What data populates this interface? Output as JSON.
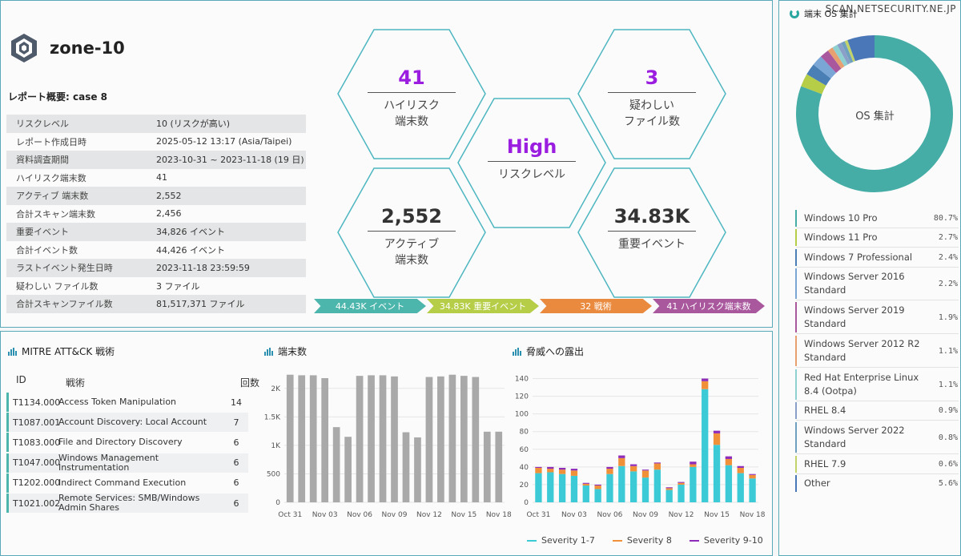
{
  "watermark": "SCAN.NETSECURITY.NE.JP",
  "brand": {
    "name": "zone-10"
  },
  "report": {
    "title": "レポート概要: case 8",
    "rows": [
      {
        "k": "リスクレベル",
        "v": "10 (リスクが高い)"
      },
      {
        "k": "レポート作成日時",
        "v": "2025-05-12 13:17 (Asia/Taipei)"
      },
      {
        "k": "資料調査期間",
        "v": "2023-10-31 ~ 2023-11-18 (19 日)"
      },
      {
        "k": "ハイリスク端末数",
        "v": "41"
      },
      {
        "k": "アクティブ 端末数",
        "v": "2,552"
      },
      {
        "k": "合計スキャン端末数",
        "v": "2,456"
      },
      {
        "k": "重要イベント",
        "v": "34,826 イベント"
      },
      {
        "k": "合計イベント数",
        "v": "44,426 イベント"
      },
      {
        "k": "ラストイベント発生日時",
        "v": "2023-11-18 23:59:59"
      },
      {
        "k": "疑わしい ファイル数",
        "v": "3 ファイル"
      },
      {
        "k": "合計スキャンファイル数",
        "v": "81,517,371 ファイル"
      }
    ]
  },
  "hexes": {
    "high_risk": {
      "value": "41",
      "label1": "ハイリスク",
      "label2": "端末数",
      "color": "#9a1de0"
    },
    "suspicious": {
      "value": "3",
      "label1": "疑わしい",
      "label2": "ファイル数",
      "color": "#9a1de0"
    },
    "risk_level": {
      "value": "High",
      "label1": "リスクレベル",
      "color": "#9a1de0"
    },
    "active": {
      "value": "2,552",
      "label1": "アクティブ",
      "label2": "端末数",
      "color": "#333333"
    },
    "events": {
      "value": "34.83K",
      "label1": "重要イベント",
      "color": "#333333"
    }
  },
  "ribbons": [
    {
      "label": "44.43K イベント",
      "color": "#4db6ac"
    },
    {
      "label": "34.83K 重要イベント",
      "color": "#b5cd47"
    },
    {
      "label": "32 戦術",
      "color": "#ea8a3e"
    },
    {
      "label": "41 ハイリスク端末数",
      "color": "#a9589e"
    }
  ],
  "mitre": {
    "title": "MITRE ATT&CK 戦術",
    "headers": {
      "id": "ID",
      "name": "戦術",
      "count": "回数"
    },
    "rows": [
      {
        "id": "T1134.000",
        "name": "Access Token Manipulation",
        "count": "14"
      },
      {
        "id": "T1087.001",
        "name": "Account Discovery: Local Account",
        "count": "7"
      },
      {
        "id": "T1083.000",
        "name": "File and Directory Discovery",
        "count": "6"
      },
      {
        "id": "T1047.000",
        "name": "Windows Management Instrumentation",
        "count": "6"
      },
      {
        "id": "T1202.000",
        "name": "Indirect Command Execution",
        "count": "6"
      },
      {
        "id": "T1021.002",
        "name": "Remote Services: SMB/Windows Admin Shares",
        "count": "6"
      }
    ]
  },
  "endpoints_chart_title": "端末数",
  "threat_chart_title": "脅威への露出",
  "os_panel": {
    "title": "端末 OS 集計",
    "donut_label": "OS 集計",
    "items": [
      {
        "name": "Windows 10 Pro",
        "pct": "80.7%",
        "color": "#45ada6"
      },
      {
        "name": "Windows 11 Pro",
        "pct": "2.7%",
        "color": "#b5cd47"
      },
      {
        "name": "Windows 7 Professional",
        "pct": "2.4%",
        "color": "#4a7fb5"
      },
      {
        "name": "Windows Server 2016 Standard",
        "pct": "2.2%",
        "color": "#7aa6d6"
      },
      {
        "name": "Windows Server 2019 Standard",
        "pct": "1.9%",
        "color": "#a9589e"
      },
      {
        "name": "Windows Server 2012 R2 Standard",
        "pct": "1.1%",
        "color": "#e8a070"
      },
      {
        "name": "Red Hat Enterprise Linux 8.4 (Ootpa)",
        "pct": "1.1%",
        "color": "#8fd0d0"
      },
      {
        "name": "RHEL 8.4",
        "pct": "0.9%",
        "color": "#8aa0c8"
      },
      {
        "name": "Windows Server 2022 Standard",
        "pct": "0.8%",
        "color": "#6fa0c0"
      },
      {
        "name": "RHEL 7.9",
        "pct": "0.6%",
        "color": "#c2d36a"
      },
      {
        "name": "Other",
        "pct": "5.6%",
        "color": "#4a77b8"
      }
    ]
  },
  "chart_data": [
    {
      "type": "bar",
      "title": "端末数",
      "categories": [
        "Oct 31",
        "Nov 01",
        "Nov 02",
        "Nov 03",
        "Nov 04",
        "Nov 05",
        "Nov 06",
        "Nov 07",
        "Nov 08",
        "Nov 09",
        "Nov 10",
        "Nov 11",
        "Nov 12",
        "Nov 13",
        "Nov 14",
        "Nov 15",
        "Nov 16",
        "Nov 17",
        "Nov 18"
      ],
      "x_tick_labels": [
        "Oct 31",
        "Nov 03",
        "Nov 06",
        "Nov 09",
        "Nov 12",
        "Nov 15",
        "Nov 18"
      ],
      "values": [
        2240,
        2230,
        2230,
        2180,
        1320,
        1150,
        2220,
        2230,
        2230,
        2210,
        1230,
        1140,
        2200,
        2210,
        2240,
        2220,
        2200,
        1240,
        1240
      ],
      "ylim": [
        0,
        2250
      ],
      "y_ticks": [
        0,
        500,
        1000,
        1500,
        2000
      ],
      "y_tick_labels": [
        "0",
        "500",
        "1K",
        "1.5K",
        "2K"
      ],
      "bar_color": "#a9a9a9"
    },
    {
      "type": "bar",
      "stacked": true,
      "title": "脅威への露出",
      "categories": [
        "Oct 31",
        "Nov 01",
        "Nov 02",
        "Nov 03",
        "Nov 04",
        "Nov 05",
        "Nov 06",
        "Nov 07",
        "Nov 08",
        "Nov 09",
        "Nov 10",
        "Nov 11",
        "Nov 12",
        "Nov 13",
        "Nov 14",
        "Nov 15",
        "Nov 16",
        "Nov 17",
        "Nov 18"
      ],
      "x_tick_labels": [
        "Oct 31",
        "Nov 03",
        "Nov 06",
        "Nov 09",
        "Nov 12",
        "Nov 15",
        "Nov 18"
      ],
      "ylim": [
        0,
        145
      ],
      "y_ticks": [
        0,
        20,
        40,
        60,
        80,
        100,
        120,
        140
      ],
      "series": [
        {
          "name": "Severity 1-7",
          "color": "#3ccbd6",
          "values": [
            33,
            34,
            32,
            30,
            19,
            15,
            32,
            41,
            35,
            28,
            37,
            14,
            20,
            40,
            128,
            65,
            42,
            33,
            27
          ]
        },
        {
          "name": "Severity 8",
          "color": "#f0913a",
          "values": [
            6,
            4,
            5,
            6,
            2,
            4,
            6,
            9,
            6,
            8,
            7,
            2,
            2,
            3,
            9,
            13,
            7,
            6,
            4
          ]
        },
        {
          "name": "Severity 9-10",
          "color": "#8e2bb8",
          "values": [
            1,
            2,
            2,
            2,
            1,
            1,
            2,
            3,
            2,
            1,
            1,
            1,
            1,
            3,
            3,
            3,
            3,
            2,
            1
          ]
        }
      ]
    },
    {
      "type": "pie",
      "title": "端末 OS 集計",
      "donut": true,
      "categories": [
        "Windows 10 Pro",
        "Windows 11 Pro",
        "Windows 7 Professional",
        "Windows Server 2016 Standard",
        "Windows Server 2019 Standard",
        "Windows Server 2012 R2 Standard",
        "Red Hat Enterprise Linux 8.4 (Ootpa)",
        "RHEL 8.4",
        "Windows Server 2022 Standard",
        "RHEL 7.9",
        "Other"
      ],
      "values": [
        80.7,
        2.7,
        2.4,
        2.2,
        1.9,
        1.1,
        1.1,
        0.9,
        0.8,
        0.6,
        5.6
      ]
    }
  ]
}
